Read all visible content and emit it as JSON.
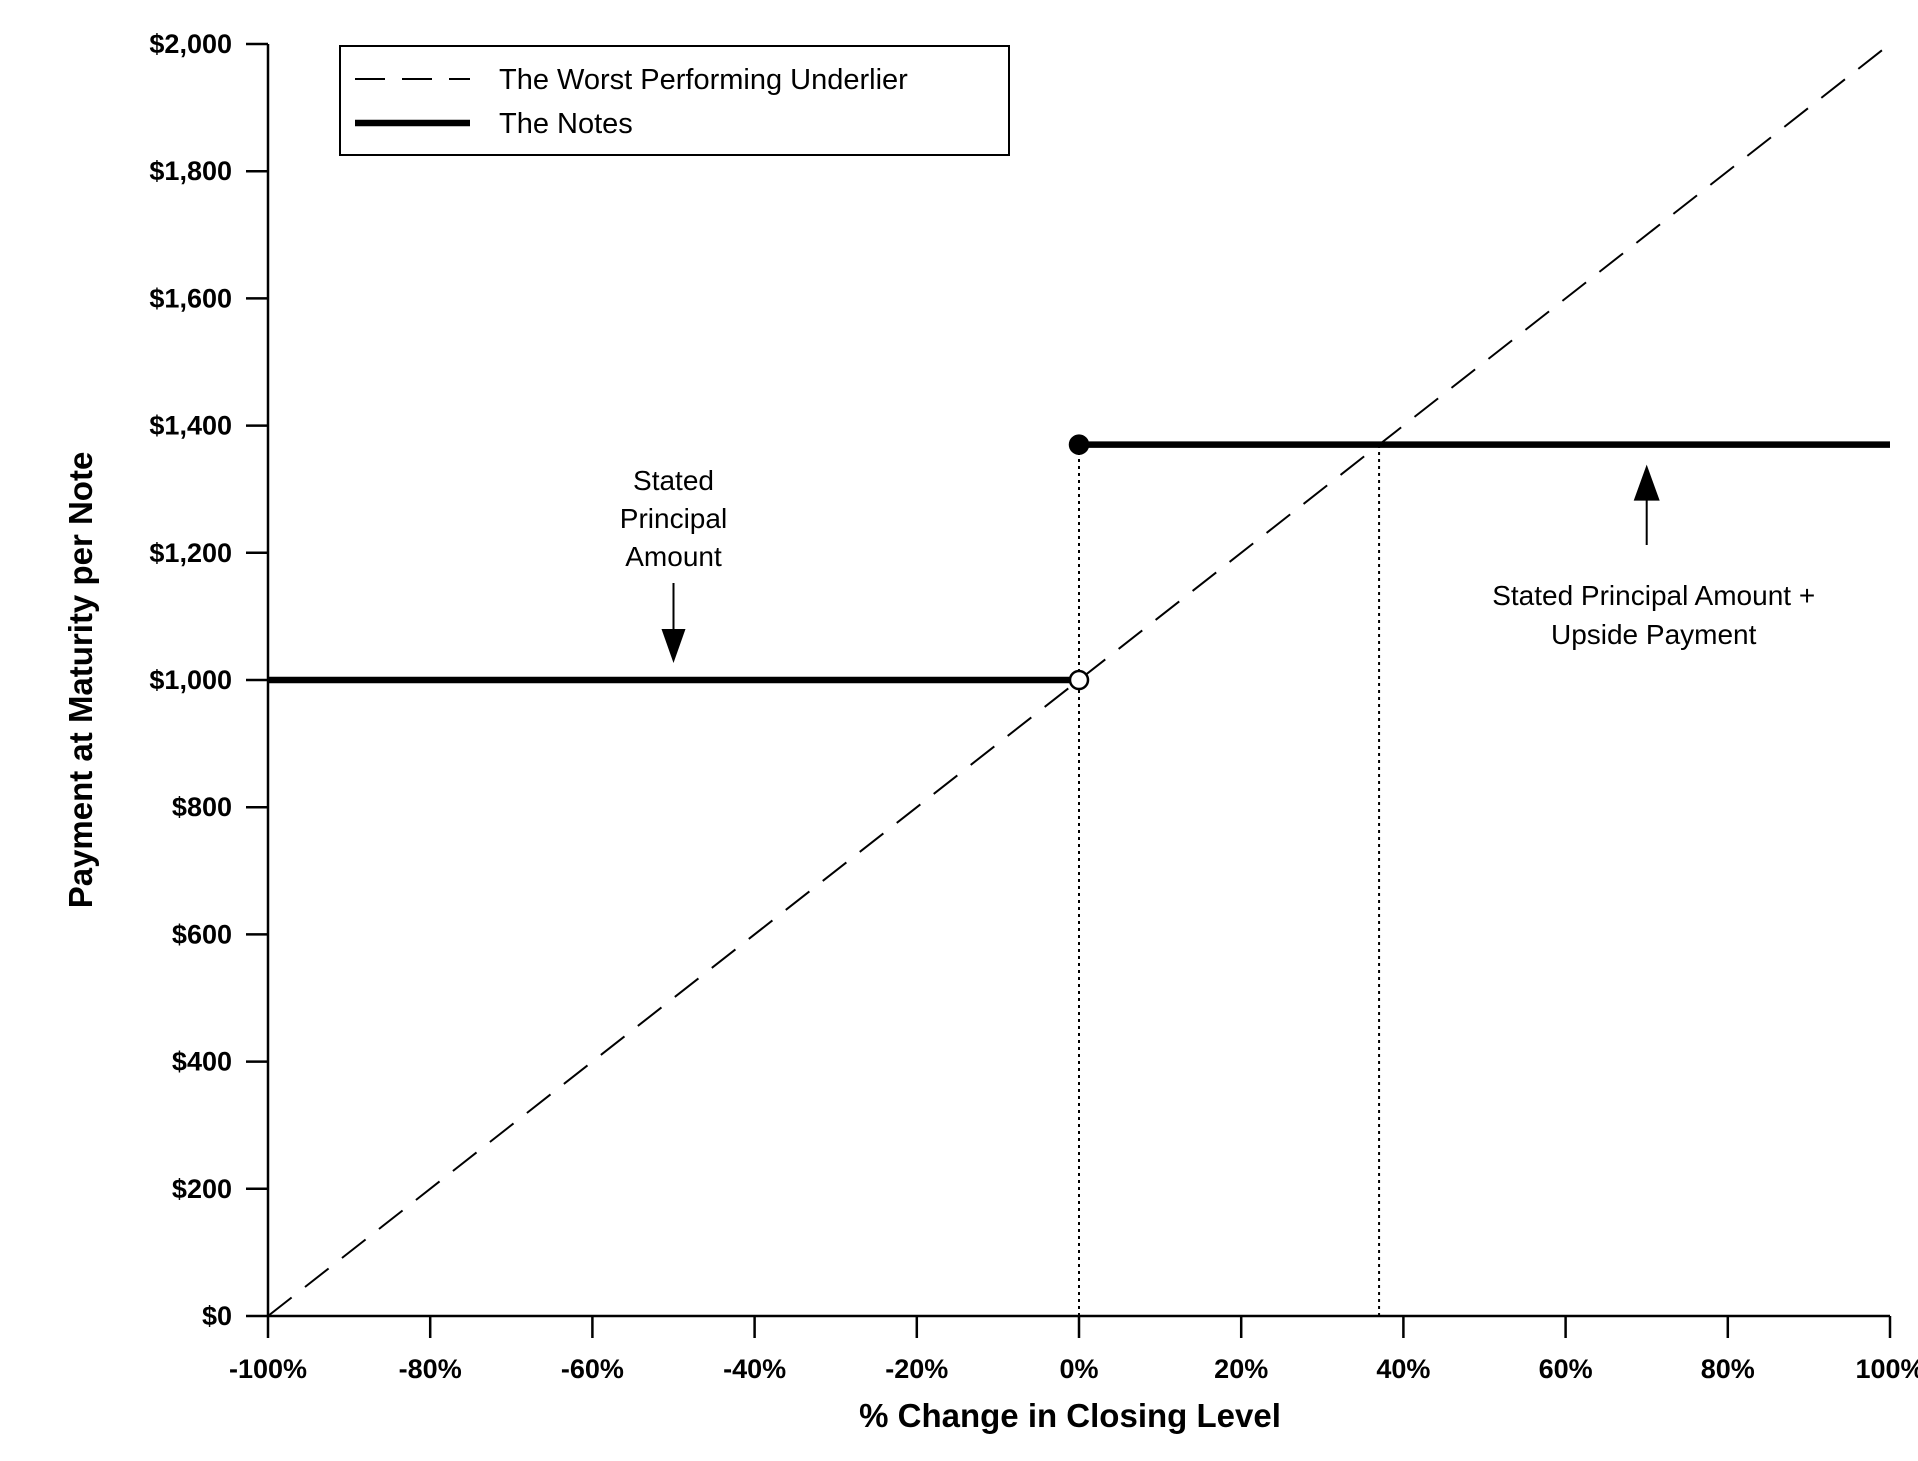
{
  "chart_data": {
    "type": "line",
    "title": "",
    "xlabel": "% Change in Closing Level",
    "ylabel": "Payment at Maturity per Note",
    "xlim": [
      -100,
      100
    ],
    "ylim": [
      0,
      2000
    ],
    "x_ticks": [
      {
        "value": -100,
        "label": "-100%"
      },
      {
        "value": -80,
        "label": "-80%"
      },
      {
        "value": -60,
        "label": "-60%"
      },
      {
        "value": -40,
        "label": "-40%"
      },
      {
        "value": -20,
        "label": "-20%"
      },
      {
        "value": 0,
        "label": "0%"
      },
      {
        "value": 20,
        "label": "20%"
      },
      {
        "value": 40,
        "label": "40%"
      },
      {
        "value": 60,
        "label": "60%"
      },
      {
        "value": 80,
        "label": "80%"
      },
      {
        "value": 100,
        "label": "100%"
      }
    ],
    "y_ticks": [
      {
        "value": 0,
        "label": "$0"
      },
      {
        "value": 200,
        "label": "$200"
      },
      {
        "value": 400,
        "label": "$400"
      },
      {
        "value": 600,
        "label": "$600"
      },
      {
        "value": 800,
        "label": "$800"
      },
      {
        "value": 1000,
        "label": "$1,000"
      },
      {
        "value": 1200,
        "label": "$1,200"
      },
      {
        "value": 1400,
        "label": "$1,400"
      },
      {
        "value": 1600,
        "label": "$1,600"
      },
      {
        "value": 1800,
        "label": "$1,800"
      },
      {
        "value": 2000,
        "label": "$2,000"
      }
    ],
    "series": [
      {
        "name": "The Worst Performing Underlier",
        "style": "dashed",
        "points": [
          [
            -100,
            0
          ],
          [
            100,
            2000
          ]
        ]
      },
      {
        "name": "The Notes",
        "style": "solid-thick",
        "segments": [
          [
            [
              -100,
              1000
            ],
            [
              0,
              1000
            ]
          ],
          [
            [
              0,
              1370
            ],
            [
              100,
              1370
            ]
          ]
        ]
      }
    ],
    "markers": [
      {
        "x": 0,
        "y": 1000,
        "fill": "open"
      },
      {
        "x": 0,
        "y": 1370,
        "fill": "filled"
      }
    ],
    "reference_lines": [
      {
        "x": 0,
        "y_from": 0,
        "y_to": 1370,
        "style": "dotted"
      },
      {
        "x": 37,
        "y_from": 0,
        "y_to": 1370,
        "style": "dotted"
      }
    ],
    "annotations": [
      {
        "lines": [
          "Stated",
          "Principal",
          "Amount"
        ],
        "arrow": "down",
        "x": -50,
        "y": 1000
      },
      {
        "lines": [
          "Stated Principal Amount +",
          "Upside Payment"
        ],
        "arrow": "up",
        "x": 70,
        "y": 1370
      }
    ],
    "legend": "top-left",
    "grid": false,
    "colors": {
      "line": "#000000",
      "background": "#ffffff"
    }
  }
}
